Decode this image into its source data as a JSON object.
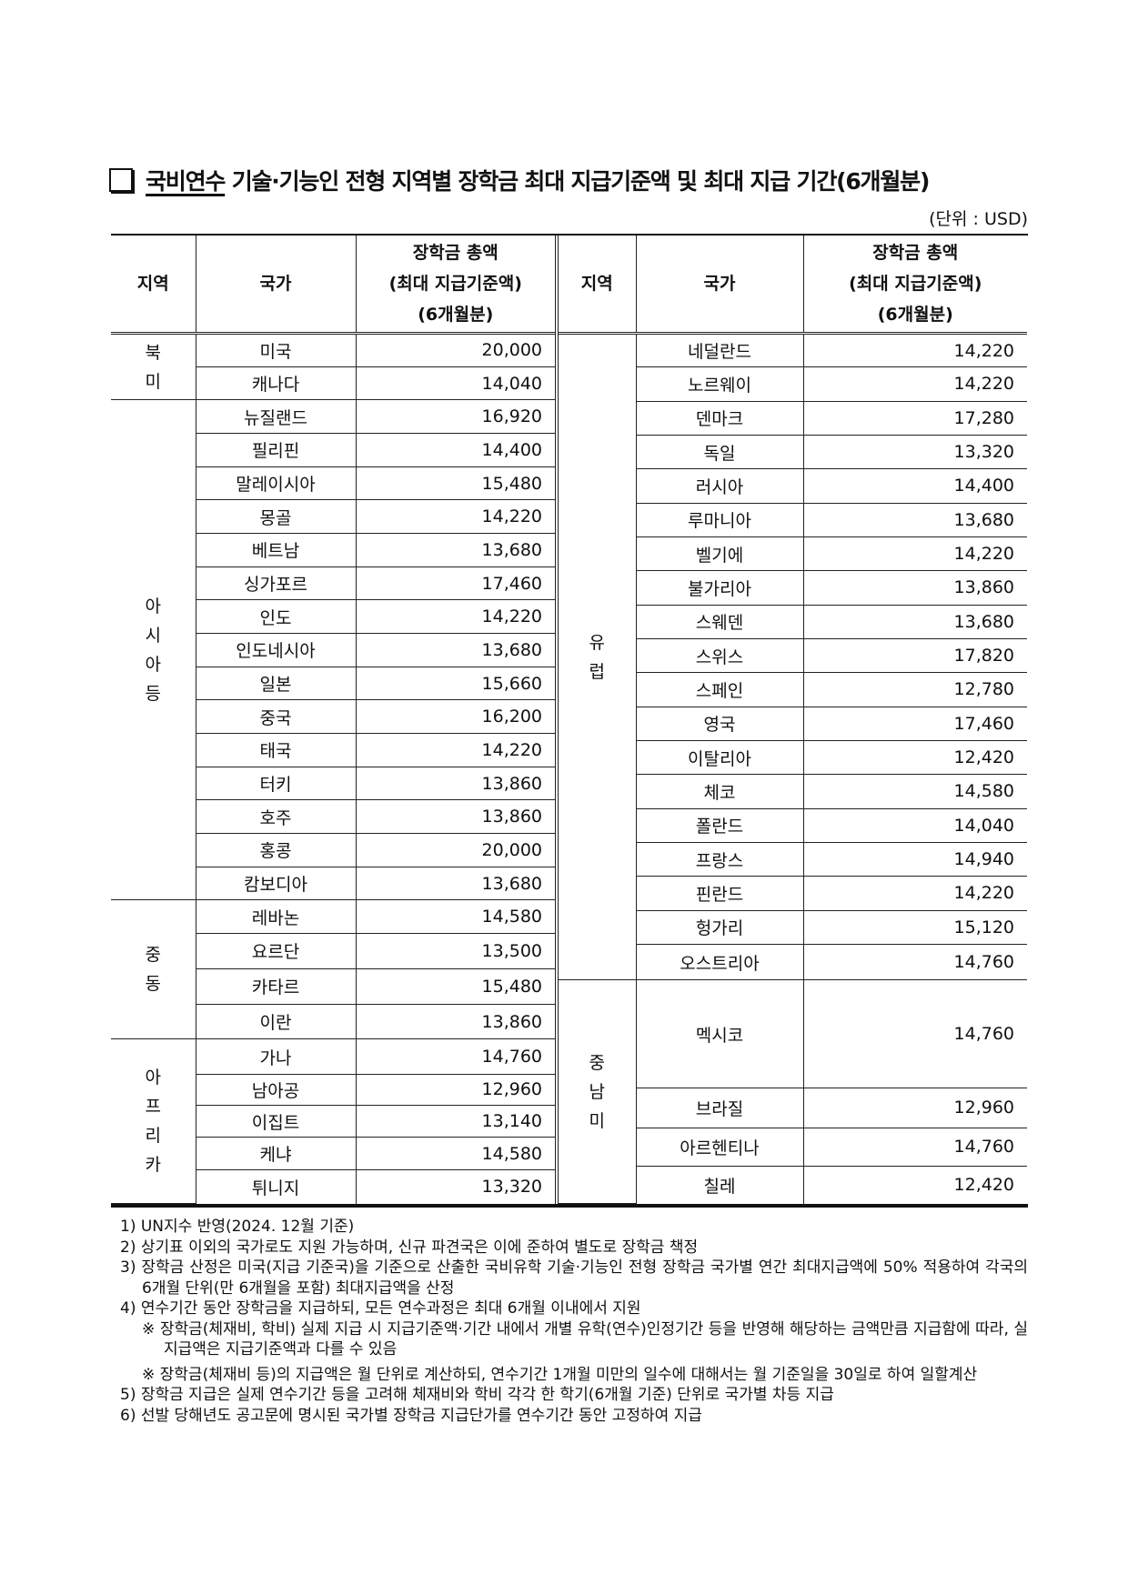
{
  "title": {
    "prefix": "국비연수",
    "rest": " 기술·기능인 전형 지역별 장학금 최대 지급기준액 및 최대 지급 기간(6개월분)"
  },
  "unit": "(단위 : USD)",
  "headers": {
    "region": "지역",
    "country": "국가",
    "amount_lines": [
      "장학금 총액",
      "(최대 지급기준액)",
      "(6개월분)"
    ]
  },
  "left_groups": [
    {
      "region": "북미",
      "rows": [
        [
          "미국",
          "20,000"
        ],
        [
          "캐나다",
          "14,040"
        ]
      ]
    },
    {
      "region": "아시아 등",
      "rows": [
        [
          "뉴질랜드",
          "16,920"
        ],
        [
          "필리핀",
          "14,400"
        ],
        [
          "말레이시아",
          "15,480"
        ],
        [
          "몽골",
          "14,220"
        ],
        [
          "베트남",
          "13,680"
        ],
        [
          "싱가포르",
          "17,460"
        ],
        [
          "인도",
          "14,220"
        ],
        [
          "인도네시아",
          "13,680"
        ],
        [
          "일본",
          "15,660"
        ],
        [
          "중국",
          "16,200"
        ],
        [
          "태국",
          "14,220"
        ],
        [
          "터키",
          "13,860"
        ],
        [
          "호주",
          "13,860"
        ],
        [
          "홍콩",
          "20,000"
        ],
        [
          "캄보디아",
          "13,680"
        ]
      ]
    },
    {
      "region": "중동",
      "rows": [
        [
          "레바논",
          "14,580"
        ],
        [
          "요르단",
          "13,500"
        ],
        [
          "카타르",
          "15,480"
        ],
        [
          "이란",
          "13,860"
        ]
      ]
    },
    {
      "region": "아프리카",
      "rows": [
        [
          "가나",
          "14,760"
        ],
        [
          "남아공",
          "12,960"
        ],
        [
          "이집트",
          "13,140"
        ],
        [
          "케냐",
          "14,580"
        ],
        [
          "튀니지",
          "13,320"
        ]
      ]
    }
  ],
  "right_groups": [
    {
      "region": "유럽",
      "rows": [
        [
          "네덜란드",
          "14,220"
        ],
        [
          "노르웨이",
          "14,220"
        ],
        [
          "덴마크",
          "17,280"
        ],
        [
          "독일",
          "13,320"
        ],
        [
          "러시아",
          "14,400"
        ],
        [
          "루마니아",
          "13,680"
        ],
        [
          "벨기에",
          "14,220"
        ],
        [
          "불가리아",
          "13,860"
        ],
        [
          "스웨덴",
          "13,680"
        ],
        [
          "스위스",
          "17,820"
        ],
        [
          "스페인",
          "12,780"
        ],
        [
          "영국",
          "17,460"
        ],
        [
          "이탈리아",
          "12,420"
        ],
        [
          "체코",
          "14,580"
        ],
        [
          "폴란드",
          "14,040"
        ],
        [
          "프랑스",
          "14,940"
        ],
        [
          "핀란드",
          "14,220"
        ],
        [
          "헝가리",
          "15,120"
        ],
        [
          "오스트리아",
          "14,760"
        ]
      ]
    },
    {
      "region": "중남미",
      "rows": [
        [
          "멕시코",
          "14,760"
        ],
        [
          "브라질",
          "12,960"
        ],
        [
          "아르헨티나",
          "14,760"
        ],
        [
          "칠레",
          "12,420"
        ]
      ]
    }
  ],
  "notes": [
    {
      "type": "note",
      "text": "1) UN지수 반영(2024. 12월 기준)"
    },
    {
      "type": "note",
      "text": "2) 상기표 이외의 국가로도 지원 가능하며, 신규 파견국은 이에 준하여 별도로 장학금 책정"
    },
    {
      "type": "note",
      "text": "3) 장학금 산정은 미국(지급 기준국)을 기준으로 산출한 국비유학 기술·기능인 전형 장학금 국가별 연간 최대지급액에 50% 적용하여 각국의 6개월 단위(만 6개월을 포함) 최대지급액을 산정"
    },
    {
      "type": "note",
      "text": "4) 연수기간 동안 장학금을 지급하되, 모든 연수과정은 최대 6개월 이내에서 지원"
    },
    {
      "type": "sub",
      "text": "※ 장학금(체재비, 학비) 실제 지급 시 지급기준액·기간 내에서 개별 유학(연수)인정기간 등을 반영해 해당하는 금액만큼 지급함에 따라, 실지급액은 지급기준액과 다를 수 있음"
    },
    {
      "type": "sub gap",
      "text": "※ 장학금(체재비 등)의 지급액은 월 단위로 계산하되, 연수기간 1개월 미만의 일수에 대해서는 월 기준일을 30일로 하여 일할계산"
    },
    {
      "type": "note",
      "text": "5) 장학금 지급은 실제 연수기간 등을 고려해 체재비와 학비 각각 한 학기(6개월 기준) 단위로 국가별 차등 지급"
    },
    {
      "type": "note",
      "text": "6) 선발 당해년도 공고문에 명시된 국가별 장학금 지급단가를 연수기간 동안 고정하여 지급"
    }
  ]
}
